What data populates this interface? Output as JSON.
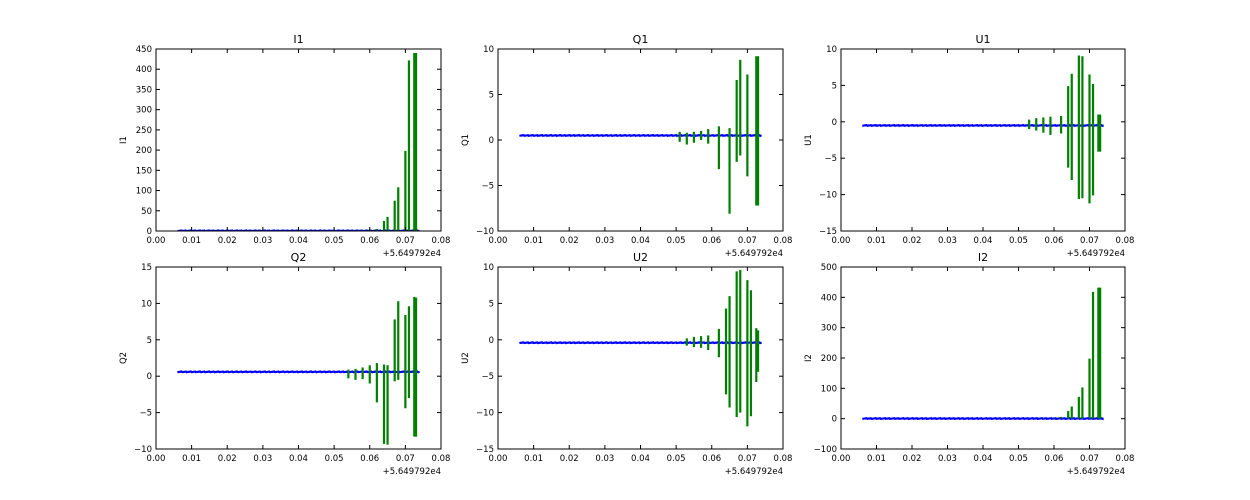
{
  "chart_data": [
    {
      "type": "line",
      "title": "I1",
      "xlabel": "",
      "ylabel": "I1",
      "xlim": [
        0.0,
        0.08
      ],
      "ylim": [
        0,
        450
      ],
      "xticks": [
        "0.00",
        "0.01",
        "0.02",
        "0.03",
        "0.04",
        "0.05",
        "0.06",
        "0.07",
        "0.08"
      ],
      "yticks": [
        "0",
        "50",
        "100",
        "150",
        "200",
        "250",
        "300",
        "350",
        "400",
        "450"
      ],
      "x_offset": "+5.649792e4",
      "grid": false,
      "series": [
        {
          "color": "#0000ff",
          "x_range": [
            0.006,
            0.074
          ],
          "baseline": 0.5
        },
        {
          "color": "#008000",
          "spikes": [
            [
              0.054,
              1
            ],
            [
              0.057,
              2
            ],
            [
              0.06,
              3
            ],
            [
              0.062,
              5
            ],
            [
              0.064,
              25
            ],
            [
              0.065,
              35
            ],
            [
              0.067,
              75
            ],
            [
              0.068,
              108
            ],
            [
              0.07,
              198
            ],
            [
              0.071,
              422
            ],
            [
              0.0725,
              440
            ],
            [
              0.073,
              440
            ]
          ]
        }
      ]
    },
    {
      "type": "line",
      "title": "Q1",
      "xlabel": "",
      "ylabel": "Q1",
      "xlim": [
        0.0,
        0.08
      ],
      "ylim": [
        -10,
        10
      ],
      "xticks": [
        "0.00",
        "0.01",
        "0.02",
        "0.03",
        "0.04",
        "0.05",
        "0.06",
        "0.07",
        "0.08"
      ],
      "yticks": [
        "−10",
        "−5",
        "0",
        "5",
        "10"
      ],
      "x_offset": "+5.649792e4",
      "grid": false,
      "series": [
        {
          "color": "#0000ff",
          "x_range": [
            0.006,
            0.074
          ],
          "baseline": 0.5
        },
        {
          "color": "#008000",
          "spikes": [
            [
              0.051,
              0.9,
              -0.2
            ],
            [
              0.053,
              0.8,
              -0.5
            ],
            [
              0.055,
              0.9,
              -0.3
            ],
            [
              0.057,
              1.0,
              0.0
            ],
            [
              0.059,
              1.2,
              -0.4
            ],
            [
              0.062,
              1.5,
              -3.2
            ],
            [
              0.065,
              1.3,
              -8.1
            ],
            [
              0.067,
              6.6,
              -2.4
            ],
            [
              0.068,
              8.8,
              -1.7
            ],
            [
              0.07,
              7.2,
              -4.0
            ],
            [
              0.0725,
              9.2,
              -7.2
            ],
            [
              0.073,
              9.2,
              -7.2
            ]
          ]
        }
      ]
    },
    {
      "type": "line",
      "title": "U1",
      "xlabel": "",
      "ylabel": "U1",
      "xlim": [
        0.0,
        0.08
      ],
      "ylim": [
        -15,
        10
      ],
      "xticks": [
        "0.00",
        "0.01",
        "0.02",
        "0.03",
        "0.04",
        "0.05",
        "0.06",
        "0.07",
        "0.08"
      ],
      "yticks": [
        "−15",
        "−10",
        "−5",
        "0",
        "5",
        "10"
      ],
      "x_offset": "+5.649792e4",
      "grid": false,
      "series": [
        {
          "color": "#0000ff",
          "x_range": [
            0.006,
            0.074
          ],
          "baseline": -0.5
        },
        {
          "color": "#008000",
          "spikes": [
            [
              0.053,
              0.3,
              -1.0
            ],
            [
              0.055,
              0.5,
              -1.2
            ],
            [
              0.057,
              0.6,
              -1.5
            ],
            [
              0.059,
              0.7,
              -1.8
            ],
            [
              0.062,
              0.8,
              -1.6
            ],
            [
              0.064,
              4.9,
              -6.3
            ],
            [
              0.065,
              6.6,
              -8.0
            ],
            [
              0.067,
              9.1,
              -10.6
            ],
            [
              0.068,
              9.0,
              -10.5
            ],
            [
              0.07,
              6.5,
              -11.2
            ],
            [
              0.071,
              5.2,
              -10.1
            ],
            [
              0.0725,
              1.0,
              -4.1
            ],
            [
              0.073,
              1.0,
              -4.1
            ]
          ]
        }
      ]
    },
    {
      "type": "line",
      "title": "Q2",
      "xlabel": "",
      "ylabel": "Q2",
      "xlim": [
        0.0,
        0.08
      ],
      "ylim": [
        -10,
        15
      ],
      "xticks": [
        "0.00",
        "0.01",
        "0.02",
        "0.03",
        "0.04",
        "0.05",
        "0.06",
        "0.07",
        "0.08"
      ],
      "yticks": [
        "−10",
        "−5",
        "0",
        "5",
        "10",
        "15"
      ],
      "x_offset": "+5.649792e4",
      "grid": false,
      "series": [
        {
          "color": "#0000ff",
          "x_range": [
            0.006,
            0.074
          ],
          "baseline": 0.6
        },
        {
          "color": "#008000",
          "spikes": [
            [
              0.054,
              0.9,
              -0.3
            ],
            [
              0.056,
              1.0,
              -0.5
            ],
            [
              0.058,
              1.2,
              -0.4
            ],
            [
              0.06,
              1.5,
              -1.0
            ],
            [
              0.062,
              1.8,
              -3.6
            ],
            [
              0.064,
              1.6,
              -9.3
            ],
            [
              0.065,
              1.5,
              -9.4
            ],
            [
              0.067,
              7.8,
              -0.7
            ],
            [
              0.068,
              10.3,
              -0.5
            ],
            [
              0.07,
              8.4,
              -4.4
            ],
            [
              0.071,
              9.6,
              -3.0
            ],
            [
              0.0725,
              10.9,
              -8.3
            ],
            [
              0.073,
              10.8,
              -8.3
            ]
          ]
        }
      ]
    },
    {
      "type": "line",
      "title": "U2",
      "xlabel": "",
      "ylabel": "U2",
      "xlim": [
        0.0,
        0.08
      ],
      "ylim": [
        -15,
        10
      ],
      "xticks": [
        "0.00",
        "0.01",
        "0.02",
        "0.03",
        "0.04",
        "0.05",
        "0.06",
        "0.07",
        "0.08"
      ],
      "yticks": [
        "−15",
        "−10",
        "−5",
        "0",
        "5",
        "10"
      ],
      "x_offset": "+5.649792e4",
      "grid": false,
      "series": [
        {
          "color": "#0000ff",
          "x_range": [
            0.006,
            0.074
          ],
          "baseline": -0.4
        },
        {
          "color": "#008000",
          "spikes": [
            [
              0.053,
              0.2,
              -0.8
            ],
            [
              0.055,
              0.4,
              -1.0
            ],
            [
              0.057,
              0.5,
              -1.1
            ],
            [
              0.059,
              0.6,
              -1.4
            ],
            [
              0.062,
              1.5,
              -2.4
            ],
            [
              0.064,
              4.3,
              -7.5
            ],
            [
              0.065,
              6.0,
              -9.3
            ],
            [
              0.067,
              9.4,
              -10.6
            ],
            [
              0.068,
              9.6,
              -10.0
            ],
            [
              0.07,
              8.2,
              -11.9
            ],
            [
              0.071,
              6.8,
              -10.5
            ],
            [
              0.0725,
              1.6,
              -5.8
            ],
            [
              0.073,
              1.3,
              -4.4
            ]
          ]
        }
      ]
    },
    {
      "type": "line",
      "title": "I2",
      "xlabel": "",
      "ylabel": "I2",
      "xlim": [
        0.0,
        0.08
      ],
      "ylim": [
        -100,
        500
      ],
      "xticks": [
        "0.00",
        "0.01",
        "0.02",
        "0.03",
        "0.04",
        "0.05",
        "0.06",
        "0.07",
        "0.08"
      ],
      "yticks": [
        "−100",
        "0",
        "100",
        "200",
        "300",
        "400",
        "500"
      ],
      "x_offset": "+5.649792e4",
      "grid": false,
      "series": [
        {
          "color": "#0000ff",
          "x_range": [
            0.006,
            0.074
          ],
          "baseline": 0.5
        },
        {
          "color": "#008000",
          "spikes": [
            [
              0.054,
              1
            ],
            [
              0.057,
              2
            ],
            [
              0.06,
              3
            ],
            [
              0.062,
              6
            ],
            [
              0.064,
              25
            ],
            [
              0.065,
              40
            ],
            [
              0.067,
              72
            ],
            [
              0.068,
              103
            ],
            [
              0.07,
              198
            ],
            [
              0.071,
              418
            ],
            [
              0.0725,
              432
            ],
            [
              0.073,
              432
            ]
          ]
        }
      ]
    }
  ]
}
